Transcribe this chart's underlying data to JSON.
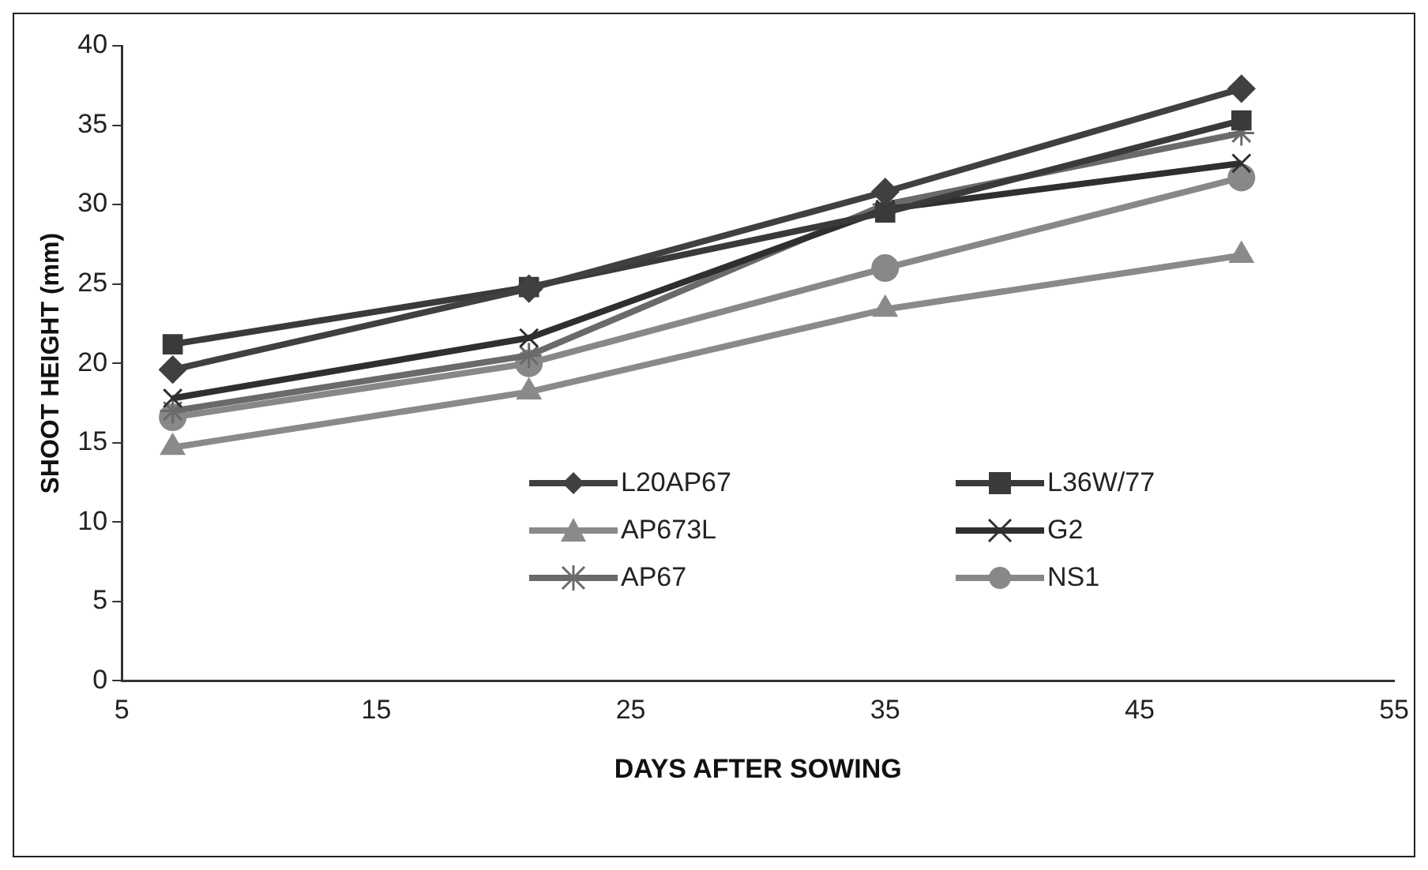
{
  "chart_data": {
    "type": "line",
    "xlabel": "DAYS AFTER SOWING",
    "ylabel": "SHOOT HEIGHT (mm)",
    "x": [
      7,
      21,
      35,
      49
    ],
    "series": [
      {
        "name": "L20AP67",
        "color": "#404040",
        "marker": "diamond",
        "values": [
          19.6,
          24.7,
          30.8,
          37.3
        ]
      },
      {
        "name": "L36W/77",
        "color": "#3a3a3a",
        "marker": "square",
        "values": [
          21.2,
          24.8,
          29.5,
          35.3
        ]
      },
      {
        "name": "AP673L",
        "color": "#8a8a8a",
        "marker": "triangle",
        "values": [
          14.7,
          18.2,
          23.4,
          26.8
        ]
      },
      {
        "name": "G2",
        "color": "#2f2f2f",
        "marker": "cross",
        "values": [
          17.8,
          21.6,
          29.7,
          32.6
        ]
      },
      {
        "name": "AP67",
        "color": "#6a6a6a",
        "marker": "cross",
        "values": [
          17.0,
          20.5,
          30.0,
          34.5
        ]
      },
      {
        "name": "NS1",
        "color": "#888888",
        "marker": "circle",
        "values": [
          16.6,
          20.0,
          26.0,
          31.7
        ]
      }
    ],
    "xlim": [
      5,
      55
    ],
    "xticks": [
      5,
      15,
      25,
      35,
      45,
      55
    ],
    "ylim": [
      0,
      40
    ],
    "yticks": [
      0,
      5,
      10,
      15,
      20,
      25,
      30,
      35,
      40
    ],
    "grid": false,
    "legend": "bottom"
  }
}
